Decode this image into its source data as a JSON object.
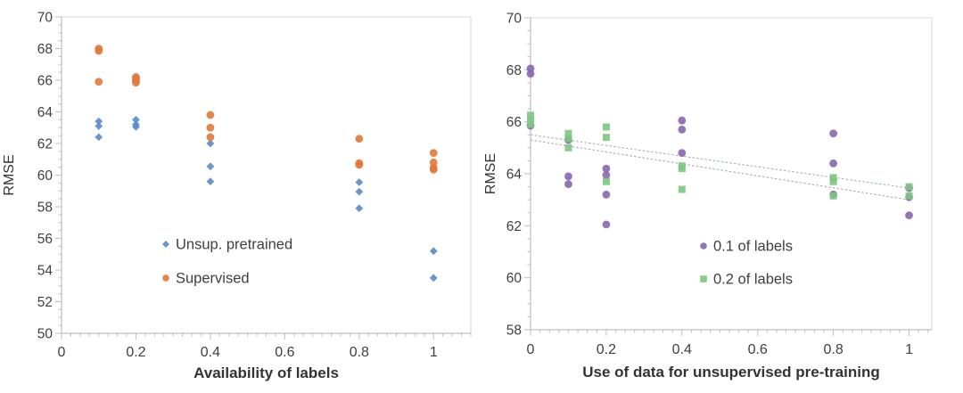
{
  "figure": {
    "background": "#ffffff",
    "text_color": "#404040",
    "axis_color": "#bfbfbf",
    "border_color": "#d9d9d9"
  },
  "chart_data": [
    {
      "id": "availability",
      "type": "scatter",
      "title": "",
      "xlabel": "Availability of labels",
      "ylabel": "RMSE",
      "xlim": [
        0,
        1.1
      ],
      "ylim": [
        50,
        70
      ],
      "x_ticks": [
        0,
        0.2,
        0.4,
        0.6,
        0.8,
        1
      ],
      "x_minor_step": 0.025,
      "y_tick_step": 2,
      "y_minor_step": 0.5,
      "grid": false,
      "legend_position": "inside-bottom-center",
      "series": [
        {
          "name": "Unsup. pretrained",
          "marker": "diamond",
          "color": "#5b8ac6",
          "points": [
            [
              0.1,
              63.4
            ],
            [
              0.1,
              63.1
            ],
            [
              0.1,
              62.4
            ],
            [
              0.2,
              63.5
            ],
            [
              0.2,
              63.2
            ],
            [
              0.2,
              63.05
            ],
            [
              0.4,
              62.0
            ],
            [
              0.4,
              60.55
            ],
            [
              0.4,
              59.6
            ],
            [
              0.8,
              59.55
            ],
            [
              0.8,
              58.95
            ],
            [
              0.8,
              57.9
            ],
            [
              1,
              55.2
            ],
            [
              1,
              53.5
            ]
          ]
        },
        {
          "name": "Supervised",
          "marker": "circle",
          "color": "#e0793b",
          "points": [
            [
              0.1,
              68.0
            ],
            [
              0.1,
              67.85
            ],
            [
              0.1,
              65.9
            ],
            [
              0.2,
              66.2
            ],
            [
              0.2,
              66.1
            ],
            [
              0.2,
              66.0
            ],
            [
              0.2,
              65.85
            ],
            [
              0.4,
              63.8
            ],
            [
              0.4,
              63.0
            ],
            [
              0.4,
              62.4
            ],
            [
              0.8,
              62.3
            ],
            [
              0.8,
              60.75
            ],
            [
              0.8,
              60.65
            ],
            [
              1,
              61.4
            ],
            [
              1,
              60.8
            ],
            [
              1,
              60.45
            ],
            [
              1,
              60.35
            ]
          ]
        }
      ],
      "trendlines": []
    },
    {
      "id": "pretraining",
      "type": "scatter",
      "title": "",
      "xlabel": "Use of data for unsupervised pre-training",
      "ylabel": "RMSE",
      "xlim": [
        0,
        1.06
      ],
      "ylim": [
        58,
        70
      ],
      "x_ticks": [
        0,
        0.2,
        0.4,
        0.6,
        0.8,
        1
      ],
      "x_minor_step": 0.025,
      "y_tick_step": 2,
      "y_minor_step": 0.5,
      "grid": false,
      "legend_position": "inside-bottom-center",
      "series": [
        {
          "name": "0.1 of labels",
          "marker": "circle",
          "color": "#8767ae",
          "points": [
            [
              0,
              68.05
            ],
            [
              0,
              67.85
            ],
            [
              0,
              65.85
            ],
            [
              0.1,
              65.3
            ],
            [
              0.1,
              63.9
            ],
            [
              0.1,
              63.6
            ],
            [
              0.2,
              64.2
            ],
            [
              0.2,
              63.95
            ],
            [
              0.2,
              63.2
            ],
            [
              0.2,
              62.05
            ],
            [
              0.4,
              66.05
            ],
            [
              0.4,
              65.7
            ],
            [
              0.4,
              64.8
            ],
            [
              0.8,
              65.55
            ],
            [
              0.8,
              64.4
            ],
            [
              0.8,
              63.2
            ],
            [
              1,
              63.45
            ],
            [
              1,
              63.1
            ],
            [
              1,
              62.4
            ]
          ]
        },
        {
          "name": "0.2 of labels",
          "marker": "square",
          "color": "#7fc582",
          "points": [
            [
              0,
              66.25
            ],
            [
              0,
              66.05
            ],
            [
              0,
              65.9
            ],
            [
              0.1,
              65.55
            ],
            [
              0.1,
              65.35
            ],
            [
              0.1,
              65.0
            ],
            [
              0.2,
              65.8
            ],
            [
              0.2,
              65.4
            ],
            [
              0.2,
              63.7
            ],
            [
              0.4,
              64.3
            ],
            [
              0.4,
              64.2
            ],
            [
              0.4,
              63.4
            ],
            [
              0.8,
              63.85
            ],
            [
              0.8,
              63.7
            ],
            [
              0.8,
              63.15
            ],
            [
              1,
              63.5
            ],
            [
              1,
              63.15
            ]
          ]
        }
      ],
      "trendlines": [
        {
          "points": [
            [
              0,
              65.5
            ],
            [
              1,
              63.45
            ]
          ],
          "color": "#9fb8a8"
        },
        {
          "points": [
            [
              0,
              65.3
            ],
            [
              1,
              63.0
            ]
          ],
          "color": "#ababab"
        }
      ]
    }
  ]
}
